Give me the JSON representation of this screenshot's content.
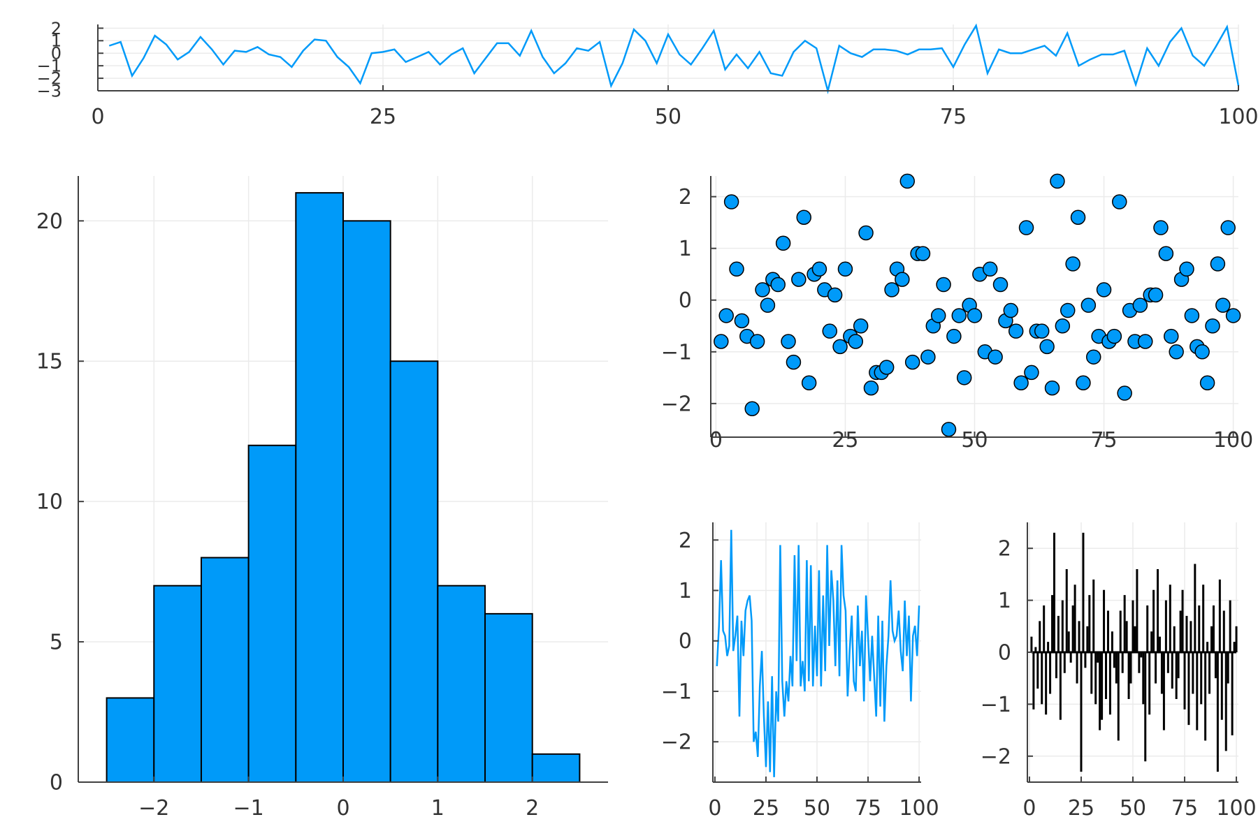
{
  "colors": {
    "accent": "#009AF9",
    "black": "#000000",
    "axis": "#404040",
    "grid": "#ebebeb"
  },
  "chart_data": [
    {
      "id": "top-line",
      "type": "line",
      "color": "#009AF9",
      "xlim": [
        0,
        100
      ],
      "ylim": [
        -3,
        2.3
      ],
      "xticks": [
        0,
        25,
        50,
        75,
        100
      ],
      "yticks": [
        -3,
        -2,
        -1,
        0,
        1,
        2
      ],
      "x": [
        1,
        2,
        3,
        4,
        5,
        6,
        7,
        8,
        9,
        10,
        11,
        12,
        13,
        14,
        15,
        16,
        17,
        18,
        19,
        20,
        21,
        22,
        23,
        24,
        25,
        26,
        27,
        28,
        29,
        30,
        31,
        32,
        33,
        34,
        35,
        36,
        37,
        38,
        39,
        40,
        41,
        42,
        43,
        44,
        45,
        46,
        47,
        48,
        49,
        50,
        51,
        52,
        53,
        54,
        55,
        56,
        57,
        58,
        59,
        60,
        61,
        62,
        63,
        64,
        65,
        66,
        67,
        68,
        69,
        70,
        71,
        72,
        73,
        74,
        75,
        76,
        77,
        78,
        79,
        80,
        81,
        82,
        83,
        84,
        85,
        86,
        87,
        88,
        89,
        90,
        91,
        92,
        93,
        94,
        95,
        96,
        97,
        98,
        99,
        100
      ],
      "values": [
        0.6,
        0.9,
        -1.8,
        -0.4,
        1.4,
        0.7,
        -0.5,
        0.1,
        1.3,
        0.3,
        -0.9,
        0.2,
        0.1,
        0.5,
        -0.1,
        -0.3,
        -1.1,
        0.2,
        1.1,
        1.0,
        -0.3,
        -1.1,
        -2.4,
        0.0,
        0.1,
        0.3,
        -0.7,
        -0.3,
        0.1,
        -0.9,
        -0.1,
        0.4,
        -1.6,
        -0.4,
        0.8,
        0.8,
        -0.2,
        1.8,
        -0.3,
        -1.6,
        -0.8,
        0.4,
        0.2,
        0.9,
        -2.6,
        -0.8,
        1.9,
        1.0,
        -0.8,
        1.5,
        -0.1,
        -0.9,
        0.4,
        1.8,
        -1.3,
        -0.1,
        -1.2,
        0.1,
        -1.6,
        -1.8,
        0.1,
        1.0,
        0.4,
        -3.0,
        0.6,
        0.0,
        -0.3,
        0.3,
        0.3,
        0.2,
        -0.1,
        0.3,
        0.3,
        0.4,
        -1.1,
        0.7,
        2.2,
        -1.6,
        0.3,
        0.0,
        0.0,
        0.3,
        0.6,
        -0.2,
        1.6,
        -1.0,
        -0.5,
        -0.1,
        -0.1,
        0.2,
        -2.5,
        0.4,
        -1.0,
        0.9,
        2.0,
        -0.2,
        -1.0,
        0.5,
        2.1,
        -2.6
      ]
    },
    {
      "id": "histogram",
      "type": "bar",
      "color": "#009AF9",
      "bin_edges": [
        -2.5,
        -2,
        -1.5,
        -1,
        -0.5,
        0,
        0.5,
        1,
        1.5,
        2,
        2.5
      ],
      "values": [
        3,
        7,
        8,
        12,
        21,
        20,
        15,
        7,
        6,
        1
      ],
      "xlim": [
        -2.8,
        2.8
      ],
      "ylim": [
        0,
        21.6
      ],
      "xticks": [
        -2,
        -1,
        0,
        1,
        2
      ],
      "yticks": [
        0,
        5,
        10,
        15,
        20
      ]
    },
    {
      "id": "scatter",
      "type": "scatter",
      "color": "#009AF9",
      "xlim": [
        -1,
        101
      ],
      "ylim": [
        -2.65,
        2.4
      ],
      "xticks": [
        0,
        25,
        50,
        75,
        100
      ],
      "yticks": [
        -2,
        -1,
        0,
        1,
        2
      ],
      "x": [
        1,
        2,
        3,
        4,
        5,
        6,
        7,
        8,
        9,
        10,
        11,
        12,
        13,
        14,
        15,
        16,
        17,
        18,
        19,
        20,
        21,
        22,
        23,
        24,
        25,
        26,
        27,
        28,
        29,
        30,
        31,
        32,
        33,
        34,
        35,
        36,
        37,
        38,
        39,
        40,
        41,
        42,
        43,
        44,
        45,
        46,
        47,
        48,
        49,
        50,
        51,
        52,
        53,
        54,
        55,
        56,
        57,
        58,
        59,
        60,
        61,
        62,
        63,
        64,
        65,
        66,
        67,
        68,
        69,
        70,
        71,
        72,
        73,
        74,
        75,
        76,
        77,
        78,
        79,
        80,
        81,
        82,
        83,
        84,
        85,
        86,
        87,
        88,
        89,
        90,
        91,
        92,
        93,
        94,
        95,
        96,
        97,
        98,
        99,
        100
      ],
      "values": [
        -0.8,
        -0.3,
        1.9,
        0.6,
        -0.4,
        -0.7,
        -2.1,
        -0.8,
        0.2,
        -0.1,
        0.4,
        0.3,
        1.1,
        -0.8,
        -1.2,
        0.4,
        1.6,
        -1.6,
        0.5,
        0.6,
        0.2,
        -0.6,
        0.1,
        -0.9,
        0.6,
        -0.7,
        -0.8,
        -0.5,
        1.3,
        -1.7,
        -1.4,
        -1.4,
        -1.3,
        0.2,
        0.6,
        0.4,
        2.3,
        -1.2,
        0.9,
        0.9,
        -1.1,
        -0.5,
        -0.3,
        0.3,
        -2.5,
        -0.7,
        -0.3,
        -1.5,
        -0.1,
        -0.3,
        0.5,
        -1.0,
        0.6,
        -1.1,
        0.3,
        -0.4,
        -0.2,
        -0.6,
        -1.6,
        1.4,
        -1.4,
        -0.6,
        -0.6,
        -0.9,
        -1.7,
        2.3,
        -0.5,
        -0.2,
        0.7,
        1.6,
        -1.6,
        -0.1,
        -1.1,
        -0.7,
        0.2,
        -0.8,
        -0.7,
        1.9,
        -1.8,
        -0.2,
        -0.8,
        -0.1,
        -0.8,
        0.1,
        0.1,
        1.4,
        0.9,
        -0.7,
        -1.0,
        0.4,
        0.6,
        -0.3,
        -0.9,
        -1.0,
        -1.6,
        -0.5,
        0.7,
        -0.1,
        1.4,
        -0.3
      ]
    },
    {
      "id": "step-blue",
      "type": "line",
      "color": "#009AF9",
      "xlim": [
        -1,
        101
      ],
      "ylim": [
        -2.8,
        2.35
      ],
      "xticks": [
        0,
        25,
        50,
        75,
        100
      ],
      "yticks": [
        -2,
        -1,
        0,
        1,
        2
      ],
      "x": [
        1,
        2,
        3,
        4,
        5,
        6,
        7,
        8,
        9,
        10,
        11,
        12,
        13,
        14,
        15,
        16,
        17,
        18,
        19,
        20,
        21,
        22,
        23,
        24,
        25,
        26,
        27,
        28,
        29,
        30,
        31,
        32,
        33,
        34,
        35,
        36,
        37,
        38,
        39,
        40,
        41,
        42,
        43,
        44,
        45,
        46,
        47,
        48,
        49,
        50,
        51,
        52,
        53,
        54,
        55,
        56,
        57,
        58,
        59,
        60,
        61,
        62,
        63,
        64,
        65,
        66,
        67,
        68,
        69,
        70,
        71,
        72,
        73,
        74,
        75,
        76,
        77,
        78,
        79,
        80,
        81,
        82,
        83,
        84,
        85,
        86,
        87,
        88,
        89,
        90,
        91,
        92,
        93,
        94,
        95,
        96,
        97,
        98,
        99,
        100
      ],
      "values": [
        -0.5,
        0.3,
        1.6,
        0.2,
        0.1,
        -0.3,
        -0.1,
        2.2,
        -0.2,
        0.1,
        0.5,
        -1.5,
        0.4,
        -0.3,
        0.6,
        0.8,
        0.9,
        0.4,
        -2.0,
        -1.8,
        -2.3,
        -0.9,
        -0.2,
        -1.5,
        -2.5,
        -1.2,
        -2.6,
        -0.7,
        -2.7,
        -1.0,
        -1.6,
        1.9,
        -0.8,
        -1.5,
        -0.8,
        -1.2,
        -0.3,
        -0.9,
        1.7,
        -0.4,
        1.9,
        -0.9,
        -0.4,
        -1.0,
        1.6,
        -0.8,
        1.5,
        -0.9,
        0.3,
        -0.7,
        1.4,
        -0.9,
        0.9,
        -0.6,
        1.9,
        -0.1,
        1.4,
        0.8,
        -0.5,
        1.2,
        -0.7,
        1.9,
        0.9,
        0.6,
        -1.1,
        -0.2,
        0.5,
        -0.8,
        -1.0,
        0.7,
        -0.5,
        0.2,
        -1.2,
        0.9,
        0.1,
        -0.8,
        0.1,
        -0.7,
        -1.5,
        0.5,
        -1.3,
        0.4,
        -1.6,
        -0.5,
        0.1,
        1.2,
        0.2,
        0.0,
        0.1,
        0.6,
        -0.2,
        -0.6,
        0.8,
        -0.3,
        0.5,
        -1.2,
        0.1,
        0.3,
        -0.3,
        0.7
      ]
    },
    {
      "id": "sticks-black",
      "type": "bar",
      "color": "#000000",
      "xlim": [
        -1,
        101
      ],
      "ylim": [
        -2.5,
        2.5
      ],
      "xticks": [
        0,
        25,
        50,
        75,
        100
      ],
      "yticks": [
        -2,
        -1,
        0,
        1,
        2
      ],
      "x": [
        1,
        2,
        3,
        4,
        5,
        6,
        7,
        8,
        9,
        10,
        11,
        12,
        13,
        14,
        15,
        16,
        17,
        18,
        19,
        20,
        21,
        22,
        23,
        24,
        25,
        26,
        27,
        28,
        29,
        30,
        31,
        32,
        33,
        34,
        35,
        36,
        37,
        38,
        39,
        40,
        41,
        42,
        43,
        44,
        45,
        46,
        47,
        48,
        49,
        50,
        51,
        52,
        53,
        54,
        55,
        56,
        57,
        58,
        59,
        60,
        61,
        62,
        63,
        64,
        65,
        66,
        67,
        68,
        69,
        70,
        71,
        72,
        73,
        74,
        75,
        76,
        77,
        78,
        79,
        80,
        81,
        82,
        83,
        84,
        85,
        86,
        87,
        88,
        89,
        90,
        91,
        92,
        93,
        94,
        95,
        96,
        97,
        98,
        99,
        100
      ],
      "values": [
        0.3,
        -1.1,
        0.1,
        -0.7,
        0.6,
        -1.0,
        0.9,
        -1.2,
        0.2,
        -0.8,
        1.1,
        2.3,
        -0.5,
        0.7,
        -1.3,
        1.0,
        -0.4,
        1.6,
        0.4,
        -0.2,
        0.9,
        1.3,
        -0.6,
        0.6,
        -2.3,
        2.3,
        -0.3,
        0.5,
        1.1,
        -0.8,
        1.4,
        -1.0,
        -0.2,
        -1.5,
        -1.3,
        1.2,
        -0.9,
        0.8,
        -1.2,
        0.4,
        -0.3,
        -0.6,
        -1.7,
        0.8,
        -0.4,
        1.1,
        0.6,
        -0.9,
        -0.6,
        1.0,
        0.5,
        1.6,
        -0.4,
        -0.1,
        -1.0,
        -2.1,
        0.9,
        -1.2,
        0.4,
        1.2,
        -0.6,
        1.6,
        0.3,
        -0.8,
        -1.5,
        1.0,
        -0.4,
        1.3,
        -0.7,
        0.5,
        -0.9,
        -0.5,
        0.8,
        1.2,
        -1.1,
        0.7,
        -1.4,
        0.6,
        -0.8,
        1.7,
        -1.5,
        0.9,
        -1.0,
        1.3,
        -1.7,
        0.2,
        -0.8,
        0.5,
        0.9,
        -0.5,
        -2.3,
        1.4,
        -1.3,
        0.8,
        -1.9,
        -0.6,
        1.0,
        -1.6,
        0.2,
        0.5
      ]
    }
  ]
}
